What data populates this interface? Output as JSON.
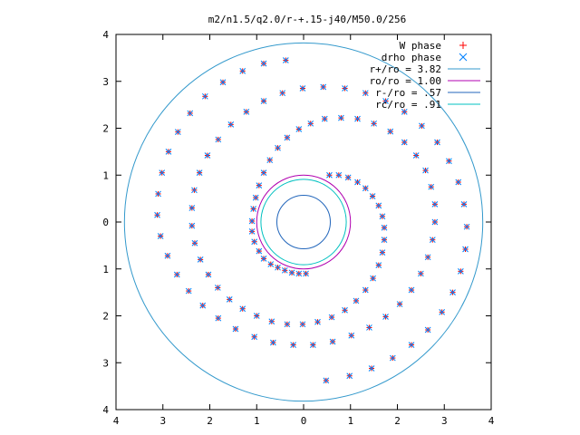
{
  "chart_data": {
    "type": "scatter",
    "title": "m2/n1.5/q2.0/r-+.15-j40/M50.0/256",
    "xlabel": "",
    "ylabel": "",
    "xlim": [
      -4,
      4
    ],
    "ylim": [
      -4,
      4
    ],
    "x_tick_labels": [
      "4",
      "3",
      "2",
      "1",
      "0",
      "1",
      "2",
      "3",
      "4"
    ],
    "y_tick_labels": [
      "4",
      "3",
      "2",
      "1",
      "0",
      "1",
      "2",
      "3",
      "4"
    ],
    "grid": false,
    "legend_position": "top-right",
    "series": [
      {
        "name": "W phase",
        "marker": "plus",
        "color": "#ff0000",
        "note": "points coincide with drho phase (rendered from same spiral data)"
      },
      {
        "name": "drho phase",
        "marker": "cross",
        "color": "#0080ff"
      }
    ],
    "circles": [
      {
        "name": "r+/ro = 3.82",
        "radius": 3.82,
        "color": "#3399cc"
      },
      {
        "name": "ro/ro = 1.00",
        "radius": 1.0,
        "color": "#b000b0"
      },
      {
        "name": "r-/ro = .57",
        "radius": 0.57,
        "color": "#2266bb"
      },
      {
        "name": "rc/ro = .91",
        "radius": 0.91,
        "color": "#00c0c0"
      }
    ],
    "spiral_points": [
      [
        0.05,
        -1.1
      ],
      [
        -0.1,
        -1.1
      ],
      [
        -0.25,
        -1.08
      ],
      [
        -0.4,
        -1.03
      ],
      [
        -0.55,
        -0.97
      ],
      [
        -0.7,
        -0.9
      ],
      [
        -0.85,
        -0.78
      ],
      [
        -0.95,
        -0.62
      ],
      [
        -1.05,
        -0.42
      ],
      [
        -1.1,
        -0.2
      ],
      [
        -1.1,
        0.02
      ],
      [
        -1.07,
        0.28
      ],
      [
        -1.02,
        0.52
      ],
      [
        -0.95,
        0.78
      ],
      [
        -0.85,
        1.05
      ],
      [
        -0.72,
        1.32
      ],
      [
        -0.55,
        1.58
      ],
      [
        -0.35,
        1.8
      ],
      [
        -0.1,
        1.98
      ],
      [
        0.15,
        2.1
      ],
      [
        0.45,
        2.2
      ],
      [
        0.8,
        2.22
      ],
      [
        1.15,
        2.2
      ],
      [
        1.5,
        2.1
      ],
      [
        1.85,
        1.93
      ],
      [
        2.15,
        1.7
      ],
      [
        2.4,
        1.42
      ],
      [
        2.6,
        1.1
      ],
      [
        2.72,
        0.75
      ],
      [
        2.8,
        0.38
      ],
      [
        2.8,
        0.0
      ],
      [
        2.75,
        -0.38
      ],
      [
        2.65,
        -0.75
      ],
      [
        2.5,
        -1.1
      ],
      [
        2.3,
        -1.45
      ],
      [
        2.05,
        -1.75
      ],
      [
        1.75,
        -2.02
      ],
      [
        1.4,
        -2.25
      ],
      [
        1.02,
        -2.42
      ],
      [
        0.62,
        -2.55
      ],
      [
        0.2,
        -2.62
      ],
      [
        -0.22,
        -2.62
      ],
      [
        -0.65,
        -2.57
      ],
      [
        -1.05,
        -2.45
      ],
      [
        -1.45,
        -2.28
      ],
      [
        -1.82,
        -2.05
      ],
      [
        -2.15,
        -1.78
      ],
      [
        -2.45,
        -1.47
      ],
      [
        -2.7,
        -1.12
      ],
      [
        -2.9,
        -0.72
      ],
      [
        -3.05,
        -0.3
      ],
      [
        -3.12,
        0.15
      ],
      [
        -3.1,
        0.6
      ],
      [
        -3.02,
        1.05
      ],
      [
        -2.88,
        1.5
      ],
      [
        -2.68,
        1.92
      ],
      [
        -2.42,
        2.32
      ],
      [
        -2.1,
        2.68
      ],
      [
        -1.72,
        2.98
      ],
      [
        -1.3,
        3.22
      ],
      [
        -0.85,
        3.38
      ],
      [
        -0.38,
        3.45
      ],
      [
        0.55,
        1.0
      ],
      [
        0.75,
        1.0
      ],
      [
        0.95,
        0.95
      ],
      [
        1.15,
        0.85
      ],
      [
        1.32,
        0.72
      ],
      [
        1.47,
        0.55
      ],
      [
        1.6,
        0.35
      ],
      [
        1.68,
        0.12
      ],
      [
        1.72,
        -0.12
      ],
      [
        1.72,
        -0.38
      ],
      [
        1.68,
        -0.65
      ],
      [
        1.6,
        -0.92
      ],
      [
        1.48,
        -1.2
      ],
      [
        1.32,
        -1.45
      ],
      [
        1.12,
        -1.68
      ],
      [
        0.88,
        -1.88
      ],
      [
        0.6,
        -2.03
      ],
      [
        0.3,
        -2.13
      ],
      [
        -0.02,
        -2.18
      ],
      [
        -0.35,
        -2.18
      ],
      [
        -0.68,
        -2.12
      ],
      [
        -1.0,
        -2.0
      ],
      [
        -1.3,
        -1.85
      ],
      [
        -1.58,
        -1.65
      ],
      [
        -1.83,
        -1.4
      ],
      [
        -2.03,
        -1.12
      ],
      [
        -2.2,
        -0.8
      ],
      [
        -2.32,
        -0.45
      ],
      [
        -2.38,
        -0.08
      ],
      [
        -2.38,
        0.3
      ],
      [
        -2.33,
        0.68
      ],
      [
        -2.22,
        1.05
      ],
      [
        -2.05,
        1.42
      ],
      [
        -1.82,
        1.76
      ],
      [
        -1.55,
        2.08
      ],
      [
        -1.22,
        2.35
      ],
      [
        -0.85,
        2.58
      ],
      [
        -0.45,
        2.75
      ],
      [
        -0.02,
        2.85
      ],
      [
        0.42,
        2.88
      ],
      [
        0.88,
        2.85
      ],
      [
        1.32,
        2.75
      ],
      [
        1.75,
        2.58
      ],
      [
        2.15,
        2.35
      ],
      [
        2.52,
        2.05
      ],
      [
        2.85,
        1.7
      ],
      [
        3.1,
        1.3
      ],
      [
        3.3,
        0.85
      ],
      [
        3.42,
        0.38
      ],
      [
        3.48,
        -0.1
      ],
      [
        3.45,
        -0.58
      ],
      [
        3.35,
        -1.05
      ],
      [
        3.18,
        -1.5
      ],
      [
        2.95,
        -1.92
      ],
      [
        2.65,
        -2.3
      ],
      [
        2.3,
        -2.62
      ],
      [
        1.9,
        -2.9
      ],
      [
        1.45,
        -3.12
      ],
      [
        0.98,
        -3.28
      ],
      [
        0.48,
        -3.38
      ]
    ]
  }
}
